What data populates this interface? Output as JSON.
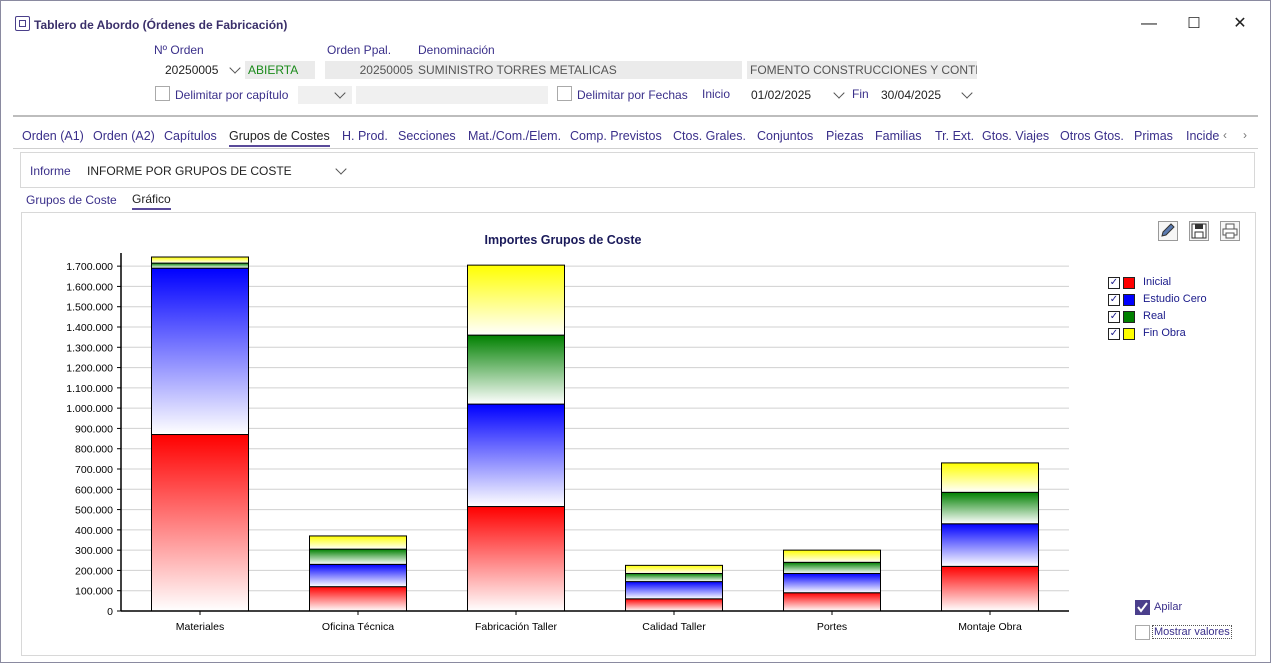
{
  "window": {
    "title": "Tablero de Abordo (Órdenes de Fabricación)",
    "min_glyph": "—",
    "max_glyph": "☐",
    "close_glyph": "✕"
  },
  "header": {
    "orden_label": "Nº Orden",
    "orden_value": "20250005",
    "estado_value": "ABIERTA",
    "orden_ppal_label": "Orden Ppal.",
    "orden_ppal_value": "20250005",
    "denominacion_label": "Denominación",
    "denominacion_value": "SUMINISTRO TORRES METALICAS",
    "cliente_value": "FOMENTO CONSTRUCCIONES Y CONTR",
    "delimitar_capitulo_label": "Delimitar por capítulo",
    "delimitar_fechas_label": "Delimitar por Fechas",
    "inicio_label": "Inicio",
    "inicio_value": "01/02/2025",
    "fin_label": "Fin",
    "fin_value": "30/04/2025"
  },
  "tabs": [
    {
      "label": "Orden (A1)"
    },
    {
      "label": "Orden (A2)"
    },
    {
      "label": "Capítulos"
    },
    {
      "label": "Grupos de Costes",
      "active": true
    },
    {
      "label": "H. Prod."
    },
    {
      "label": "Secciones"
    },
    {
      "label": "Mat./Com./Elem."
    },
    {
      "label": "Comp. Previstos"
    },
    {
      "label": "Ctos. Grales."
    },
    {
      "label": "Conjuntos"
    },
    {
      "label": "Piezas"
    },
    {
      "label": "Familias"
    },
    {
      "label": "Tr. Ext."
    },
    {
      "label": "Gtos. Viajes"
    },
    {
      "label": "Otros Gtos."
    },
    {
      "label": "Primas"
    },
    {
      "label": "Incide"
    }
  ],
  "informe": {
    "label": "Informe",
    "value": "INFORME POR GRUPOS DE COSTE"
  },
  "subtabs": [
    {
      "label": "Grupos de Coste"
    },
    {
      "label": "Gráfico",
      "active": true
    }
  ],
  "options": {
    "apilar_label": "Apilar",
    "apilar_checked": true,
    "mostrar_valores_label": "Mostrar valores",
    "mostrar_valores_checked": false
  },
  "icons": {
    "edit": "pencil-icon",
    "save": "save-icon",
    "print": "printer-icon"
  },
  "chart_data": {
    "type": "bar",
    "stacked": true,
    "title": "Importes Grupos de Coste",
    "categories": [
      "Materiales",
      "Oficina Técnica",
      "Fabricación Taller",
      "Calidad Taller",
      "Portes",
      "Montaje Obra"
    ],
    "series": [
      {
        "name": "Inicial",
        "color": "#ff0000",
        "values": [
          870000,
          120000,
          515000,
          60000,
          90000,
          220000
        ]
      },
      {
        "name": "Estudio Cero",
        "color": "#0000ff",
        "values": [
          820000,
          110000,
          505000,
          85000,
          95000,
          210000
        ]
      },
      {
        "name": "Real",
        "color": "#008000",
        "values": [
          25000,
          75000,
          340000,
          40000,
          55000,
          155000
        ]
      },
      {
        "name": "Fin Obra",
        "color": "#ffff00",
        "values": [
          30000,
          65000,
          345000,
          40000,
          60000,
          145000
        ]
      }
    ],
    "ylim": [
      0,
      1750000
    ],
    "yticks": [
      0,
      100000,
      200000,
      300000,
      400000,
      500000,
      600000,
      700000,
      800000,
      900000,
      1000000,
      1100000,
      1200000,
      1300000,
      1400000,
      1500000,
      1600000,
      1700000
    ],
    "ytick_labels": [
      "0",
      "100.000",
      "200.000",
      "300.000",
      "400.000",
      "500.000",
      "600.000",
      "700.000",
      "800.000",
      "900.000",
      "1.000.000",
      "1.100.000",
      "1.200.000",
      "1.300.000",
      "1.400.000",
      "1.500.000",
      "1.600.000",
      "1.700.000"
    ],
    "grid": true,
    "legend": "right",
    "xlabel": "",
    "ylabel": ""
  }
}
